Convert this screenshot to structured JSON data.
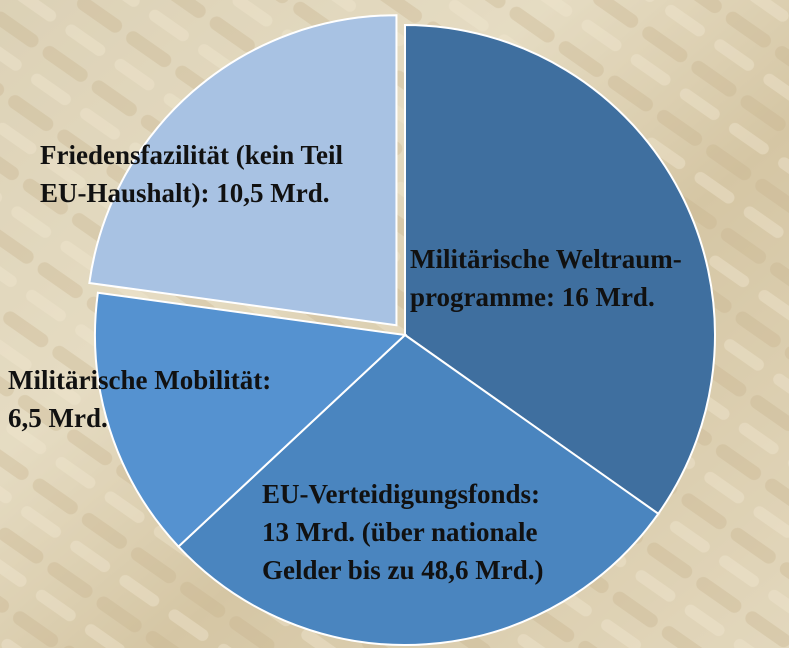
{
  "chart_data": {
    "type": "pie",
    "labels": [
      [
        "Militärische Weltraum-",
        "programme: 16 Mrd."
      ],
      [
        "EU-Verteidigungsfonds:",
        "13 Mrd. (über nationale",
        "Gelder bis zu 48,6 Mrd.)"
      ],
      [
        "Militärische Mobilität:",
        "6,5 Mrd."
      ],
      [
        "Friedensfazilität (kein Teil",
        "EU-Haushalt): 10,5 Mrd."
      ]
    ],
    "values": [
      16,
      13,
      6.5,
      10.5
    ],
    "colors": [
      "#3f6f9f",
      "#4a85bf",
      "#5592d0",
      "#a8c2e3"
    ]
  }
}
